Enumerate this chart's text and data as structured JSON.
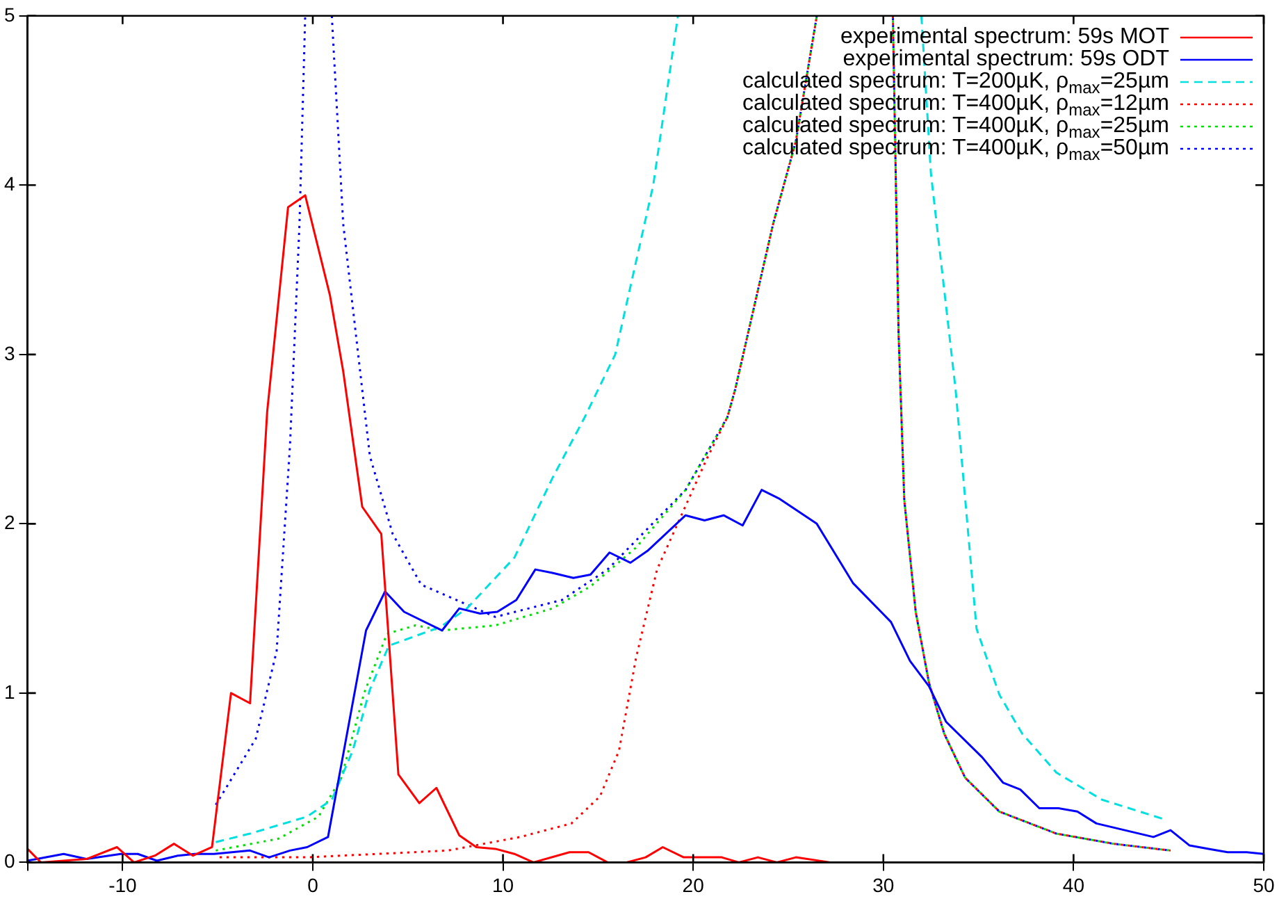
{
  "chart_data": {
    "type": "line",
    "xlim": [
      -15,
      50
    ],
    "ylim": [
      0,
      5
    ],
    "xticks": [
      {
        "value": -15,
        "label": null
      },
      -10,
      0,
      10,
      20,
      30,
      40,
      50
    ],
    "yticks": [
      0,
      1,
      2,
      3,
      4,
      5
    ],
    "grid": false,
    "legend": "top right",
    "marker": "none",
    "series": [
      {
        "name": "experimental spectrum: 59s MOT",
        "color": "#ff0000",
        "line_style": "solid",
        "x": [
          -15,
          -14.3,
          -11.9,
          -10.3,
          -9.4,
          -8.3,
          -7.3,
          -6.3,
          -5.3,
          -4.3,
          -3.3,
          -2.4,
          -1.3,
          -0.4,
          0.9,
          1.6,
          2.6,
          3.6,
          4.5,
          5.6,
          6.5,
          7.7,
          8.6,
          9.6,
          10.6,
          11.6,
          13.5,
          14.5,
          15.5,
          16.5,
          17.5,
          18.4,
          19.5,
          20.5,
          21.5,
          22.4,
          23.4,
          24.4,
          25.4,
          27.2
        ],
        "values": [
          0.08,
          0,
          0.02,
          0.09,
          0,
          0.04,
          0.11,
          0.04,
          0.09,
          1.0,
          0.94,
          2.66,
          3.87,
          3.94,
          3.35,
          2.9,
          2.1,
          1.94,
          0.52,
          0.35,
          0.44,
          0.16,
          0.09,
          0.08,
          0.05,
          0,
          0.06,
          0.06,
          0,
          0,
          0.03,
          0.09,
          0.03,
          0.03,
          0.03,
          0,
          0.03,
          0,
          0.03,
          0
        ]
      },
      {
        "name": "experimental spectrum: 59s ODT",
        "color": "#0000ff",
        "line_style": "solid",
        "x": [
          -15,
          -13.1,
          -11.9,
          -10.1,
          -9.2,
          -8.2,
          -7.1,
          -6.2,
          -5.2,
          -3.3,
          -2.3,
          -1.2,
          -0.3,
          0.8,
          2.8,
          3.8,
          4.8,
          6.8,
          7.7,
          8.8,
          9.7,
          10.7,
          11.7,
          12.6,
          13.7,
          14.6,
          15.6,
          16.7,
          17.6,
          19.6,
          20.6,
          21.6,
          22.6,
          23.6,
          24.5,
          26.5,
          28.4,
          30.4,
          31.4,
          32.4,
          33.3,
          35.2,
          36.3,
          37.2,
          38.2,
          39.2,
          40.2,
          41.2,
          44.2,
          45.1,
          46.1,
          47.1,
          48.1,
          49.1,
          50
        ],
        "values": [
          0.01,
          0.05,
          0.02,
          0.05,
          0.05,
          0.01,
          0.04,
          0.05,
          0.05,
          0.07,
          0.03,
          0.07,
          0.09,
          0.15,
          1.37,
          1.6,
          1.48,
          1.37,
          1.5,
          1.47,
          1.48,
          1.55,
          1.73,
          1.71,
          1.68,
          1.7,
          1.83,
          1.77,
          1.84,
          2.05,
          2.02,
          2.05,
          1.99,
          2.2,
          2.15,
          2.0,
          1.65,
          1.42,
          1.19,
          1.04,
          0.83,
          0.62,
          0.47,
          0.43,
          0.32,
          0.32,
          0.3,
          0.23,
          0.15,
          0.19,
          0.1,
          0.08,
          0.06,
          0.06,
          0.05
        ]
      },
      {
        "name": "calculated spectrum: T=200µK, ρ$_{max}$=25µm",
        "color": "#00e0e0",
        "line_style": "dashed",
        "x": [
          -5.1,
          -3.3,
          -0.3,
          1.0,
          2.1,
          3.0,
          4.0,
          6.7,
          8.1,
          10.6,
          12.6,
          14.3,
          15.9,
          17.9,
          19.2,
          25.6,
          32.0,
          32.5,
          33.8,
          34.9,
          36.1,
          37.3,
          39.1,
          41.5,
          44.9
        ],
        "values": [
          0.12,
          0.17,
          0.27,
          0.37,
          0.66,
          1.02,
          1.28,
          1.39,
          1.5,
          1.8,
          2.27,
          2.63,
          3.0,
          4.0,
          5.0,
          null,
          5.0,
          4.07,
          2.79,
          1.38,
          0.99,
          0.76,
          0.53,
          0.37,
          0.25
        ]
      },
      {
        "name": "calculated spectrum: T=400µK, ρ$_{max}$=12µm",
        "color": "#ff0000",
        "line_style": "dotted",
        "x": [
          -4.9,
          -0.3,
          7.1,
          10.9,
          13.6,
          15.1,
          16.1,
          17.0,
          18.1,
          19.3,
          20.7,
          21.8,
          22.2,
          24.2,
          25.4,
          26.5,
          28.5,
          30.5,
          30.8,
          31.1,
          31.7,
          32.4,
          33.2,
          34.3,
          36.1,
          39.1,
          42.1,
          45.1
        ],
        "values": [
          0.03,
          0.03,
          0.07,
          0.15,
          0.23,
          0.39,
          0.66,
          1.21,
          1.73,
          2.03,
          2.38,
          2.63,
          2.79,
          3.77,
          4.26,
          5.0,
          null,
          5.0,
          3.12,
          2.14,
          1.48,
          1.06,
          0.76,
          0.5,
          0.3,
          0.17,
          0.11,
          0.07
        ]
      },
      {
        "name": "calculated spectrum: T=400µK, ρ$_{max}$=25µm",
        "color": "#00e000",
        "line_style": "dotted",
        "x": [
          -5.1,
          -1.8,
          0.3,
          1.5,
          2.7,
          3.9,
          5.4,
          6.8,
          9.6,
          12.6,
          14.6,
          17.0,
          19.6,
          21.8,
          22.2,
          24.2,
          25.4,
          26.5,
          28.5,
          30.5,
          30.8,
          31.1,
          31.7,
          32.4,
          33.2,
          34.3,
          36.1,
          39.1,
          42.1,
          45.1
        ],
        "values": [
          0.07,
          0.14,
          0.27,
          0.5,
          1.0,
          1.35,
          1.4,
          1.37,
          1.4,
          1.5,
          1.63,
          1.86,
          2.2,
          2.63,
          2.79,
          3.77,
          4.26,
          5.0,
          null,
          5.0,
          3.12,
          2.14,
          1.48,
          1.06,
          0.76,
          0.5,
          0.3,
          0.17,
          0.11,
          0.07
        ]
      },
      {
        "name": "calculated spectrum: T=400µK, ρ$_{max}$=50µm",
        "color": "#0000ff",
        "line_style": "dotted",
        "x": [
          -5.1,
          -3.0,
          -1.9,
          -1.2,
          -0.7,
          -0.4,
          0.3,
          1.0,
          1.6,
          3.0,
          4.2,
          5.7,
          9.6,
          13.1,
          15.5,
          19.6,
          21.8,
          22.2,
          24.2,
          25.4,
          26.5,
          28.5,
          30.5,
          30.8,
          31.1,
          31.7,
          32.4,
          33.2,
          34.3,
          36.1,
          39.1,
          42.1,
          45.1
        ],
        "values": [
          0.34,
          0.73,
          1.25,
          2.46,
          3.77,
          5.0,
          null,
          5.0,
          3.77,
          2.4,
          1.94,
          1.64,
          1.45,
          1.55,
          1.73,
          2.2,
          2.63,
          2.79,
          3.77,
          4.26,
          5.0,
          null,
          5.0,
          3.12,
          2.14,
          1.48,
          1.06,
          0.76,
          0.5,
          0.3,
          0.17,
          0.11,
          0.07
        ]
      }
    ]
  }
}
